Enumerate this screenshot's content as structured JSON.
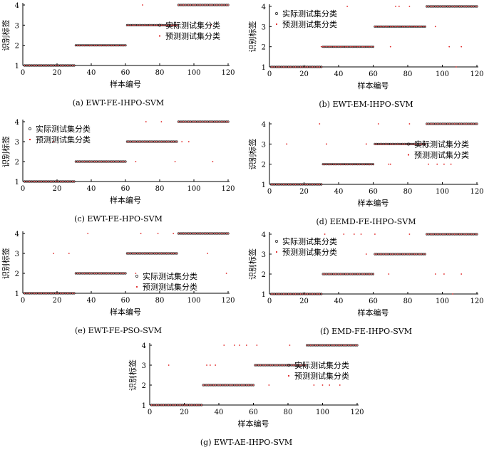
{
  "figure": {
    "colors": {
      "actual": "#1a1a1a",
      "predicted": "#e02020",
      "axis": "#000000",
      "background": "#ffffff"
    },
    "icons": {
      "actual_marker": "hollow-circle-icon",
      "predicted_marker": "red-dot-icon"
    }
  },
  "chart_data": [
    {
      "type": "scatter",
      "caption": "(a) EWT-FE-IHPO-SVM",
      "xlabel": "样本编号",
      "ylabel": "识别标签",
      "xlim": [
        0,
        120
      ],
      "ylim": [
        1,
        4
      ],
      "xticks": [
        0,
        20,
        40,
        60,
        80,
        100,
        120
      ],
      "yticks": [
        1,
        2,
        3,
        4
      ],
      "grid": false,
      "legend_position": "center-right",
      "series": [
        {
          "name": "实际测试集分类",
          "marker": "hollow-circle",
          "color": "#1a1a1a",
          "segments": [
            {
              "y": 1,
              "x": [
                1,
                30
              ]
            },
            {
              "y": 2,
              "x": [
                31,
                60
              ]
            },
            {
              "y": 3,
              "x": [
                61,
                90
              ]
            },
            {
              "y": 4,
              "x": [
                91,
                120
              ]
            }
          ]
        },
        {
          "name": "预测测试集分类",
          "marker": "dot",
          "color": "#e02020",
          "segments": [
            {
              "y": 1,
              "x": [
                1,
                30
              ]
            },
            {
              "y": 2,
              "x": [
                31,
                60
              ]
            },
            {
              "y": 3,
              "x": [
                61,
                90
              ]
            },
            {
              "y": 4,
              "x": [
                91,
                120
              ]
            }
          ],
          "outliers": [
            [
              70,
              4
            ],
            [
              110,
              3
            ]
          ]
        }
      ]
    },
    {
      "type": "scatter",
      "caption": "(b) EWT-EM-IHPO-SVM",
      "xlabel": "样本编号",
      "ylabel": "识别标签",
      "xlim": [
        0,
        120
      ],
      "ylim": [
        1,
        4
      ],
      "xticks": [
        0,
        20,
        40,
        60,
        80,
        100,
        120
      ],
      "yticks": [
        1,
        2,
        3,
        4
      ],
      "grid": false,
      "legend_position": "top-left",
      "series": [
        {
          "name": "实际测试集分类",
          "marker": "hollow-circle",
          "color": "#1a1a1a",
          "segments": [
            {
              "y": 1,
              "x": [
                1,
                30
              ]
            },
            {
              "y": 2,
              "x": [
                31,
                60
              ]
            },
            {
              "y": 3,
              "x": [
                61,
                90
              ]
            },
            {
              "y": 4,
              "x": [
                91,
                120
              ]
            }
          ]
        },
        {
          "name": "预测测试集分类",
          "marker": "dot",
          "color": "#e02020",
          "segments": [
            {
              "y": 1,
              "x": [
                1,
                30
              ]
            },
            {
              "y": 2,
              "x": [
                31,
                60
              ]
            },
            {
              "y": 3,
              "x": [
                61,
                90
              ]
            },
            {
              "y": 4,
              "x": [
                91,
                120
              ]
            }
          ],
          "outliers": [
            [
              30,
              2
            ],
            [
              45,
              4
            ],
            [
              73,
              4
            ],
            [
              75,
              4
            ],
            [
              81,
              4
            ],
            [
              70,
              2
            ],
            [
              96,
              3
            ],
            [
              104,
              2
            ],
            [
              108,
              1
            ],
            [
              111,
              2
            ]
          ]
        }
      ]
    },
    {
      "type": "scatter",
      "caption": "(c) EWT-FE-HPO-SVM",
      "xlabel": "样本编号",
      "ylabel": "识别标签",
      "xlim": [
        0,
        120
      ],
      "ylim": [
        1,
        4
      ],
      "xticks": [
        0,
        20,
        40,
        60,
        80,
        100,
        120
      ],
      "yticks": [
        1,
        2,
        3,
        4
      ],
      "grid": false,
      "legend_position": "top-left",
      "series": [
        {
          "name": "实际测试集分类",
          "marker": "hollow-circle",
          "color": "#1a1a1a",
          "segments": [
            {
              "y": 1,
              "x": [
                1,
                30
              ]
            },
            {
              "y": 2,
              "x": [
                31,
                60
              ]
            },
            {
              "y": 3,
              "x": [
                61,
                90
              ]
            },
            {
              "y": 4,
              "x": [
                91,
                120
              ]
            }
          ]
        },
        {
          "name": "预测测试集分类",
          "marker": "dot",
          "color": "#e02020",
          "segments": [
            {
              "y": 1,
              "x": [
                1,
                30
              ]
            },
            {
              "y": 2,
              "x": [
                31,
                60
              ]
            },
            {
              "y": 3,
              "x": [
                61,
                90
              ]
            },
            {
              "y": 4,
              "x": [
                91,
                120
              ]
            }
          ],
          "outliers": [
            [
              18,
              3
            ],
            [
              72,
              4
            ],
            [
              81,
              4
            ],
            [
              66,
              2
            ],
            [
              89,
              2
            ],
            [
              93,
              3
            ],
            [
              97,
              3
            ],
            [
              111,
              2
            ]
          ]
        }
      ]
    },
    {
      "type": "scatter",
      "caption": "(d) EEMD-FE-IHPO-SVM",
      "xlabel": "样本编号",
      "ylabel": "识别标签",
      "xlim": [
        0,
        120
      ],
      "ylim": [
        1,
        4
      ],
      "xticks": [
        0,
        20,
        40,
        60,
        80,
        100,
        120
      ],
      "yticks": [
        1,
        2,
        3,
        4
      ],
      "grid": false,
      "legend_position": "center-right",
      "series": [
        {
          "name": "实际测试集分类",
          "marker": "hollow-circle",
          "color": "#1a1a1a",
          "segments": [
            {
              "y": 1,
              "x": [
                1,
                30
              ]
            },
            {
              "y": 2,
              "x": [
                31,
                60
              ]
            },
            {
              "y": 3,
              "x": [
                61,
                90
              ]
            },
            {
              "y": 4,
              "x": [
                91,
                120
              ]
            }
          ]
        },
        {
          "name": "预测测试集分类",
          "marker": "dot",
          "color": "#e02020",
          "segments": [
            {
              "y": 1,
              "x": [
                1,
                30
              ]
            },
            {
              "y": 2,
              "x": [
                31,
                60
              ]
            },
            {
              "y": 3,
              "x": [
                61,
                90
              ]
            },
            {
              "y": 4,
              "x": [
                91,
                120
              ]
            }
          ],
          "outliers": [
            [
              10,
              3
            ],
            [
              29,
              4
            ],
            [
              33,
              3
            ],
            [
              56,
              3
            ],
            [
              63,
              4
            ],
            [
              69,
              2
            ],
            [
              70,
              2
            ],
            [
              81,
              4
            ],
            [
              92,
              2
            ],
            [
              97,
              2
            ],
            [
              101,
              2
            ],
            [
              105,
              2
            ]
          ]
        }
      ]
    },
    {
      "type": "scatter",
      "caption": "(e) EWT-FE-PSO-SVM",
      "xlabel": "样本编号",
      "ylabel": "识别标签",
      "xlim": [
        0,
        120
      ],
      "ylim": [
        1,
        4
      ],
      "xticks": [
        0,
        20,
        40,
        60,
        80,
        100,
        120
      ],
      "yticks": [
        1,
        2,
        3,
        4
      ],
      "grid": false,
      "legend_position": "bottom-right",
      "series": [
        {
          "name": "实际测试集分类",
          "marker": "hollow-circle",
          "color": "#1a1a1a",
          "segments": [
            {
              "y": 1,
              "x": [
                1,
                30
              ]
            },
            {
              "y": 2,
              "x": [
                31,
                60
              ]
            },
            {
              "y": 3,
              "x": [
                61,
                90
              ]
            },
            {
              "y": 4,
              "x": [
                91,
                120
              ]
            }
          ]
        },
        {
          "name": "预测测试集分类",
          "marker": "dot",
          "color": "#e02020",
          "segments": [
            {
              "y": 1,
              "x": [
                1,
                30
              ]
            },
            {
              "y": 2,
              "x": [
                31,
                60
              ]
            },
            {
              "y": 3,
              "x": [
                61,
                90
              ]
            },
            {
              "y": 4,
              "x": [
                91,
                120
              ]
            }
          ],
          "outliers": [
            [
              18,
              3
            ],
            [
              27,
              3
            ],
            [
              38,
              4
            ],
            [
              69,
              4
            ],
            [
              79,
              4
            ],
            [
              88,
              4
            ],
            [
              66,
              2
            ],
            [
              108,
              3
            ],
            [
              119,
              2
            ]
          ]
        }
      ]
    },
    {
      "type": "scatter",
      "caption": "(f) EMD-FE-IHPO-SVM",
      "xlabel": "样本编号",
      "ylabel": "识别标签",
      "xlim": [
        0,
        120
      ],
      "ylim": [
        1,
        4
      ],
      "xticks": [
        0,
        20,
        40,
        60,
        80,
        100,
        120
      ],
      "yticks": [
        1,
        2,
        3,
        4
      ],
      "grid": false,
      "legend_position": "top-left",
      "series": [
        {
          "name": "实际测试集分类",
          "marker": "hollow-circle",
          "color": "#1a1a1a",
          "segments": [
            {
              "y": 1,
              "x": [
                1,
                30
              ]
            },
            {
              "y": 2,
              "x": [
                31,
                60
              ]
            },
            {
              "y": 3,
              "x": [
                61,
                90
              ]
            },
            {
              "y": 4,
              "x": [
                91,
                120
              ]
            }
          ]
        },
        {
          "name": "预测测试集分类",
          "marker": "dot",
          "color": "#e02020",
          "segments": [
            {
              "y": 1,
              "x": [
                1,
                30
              ]
            },
            {
              "y": 2,
              "x": [
                31,
                60
              ]
            },
            {
              "y": 3,
              "x": [
                61,
                90
              ]
            },
            {
              "y": 4,
              "x": [
                91,
                120
              ]
            }
          ],
          "outliers": [
            [
              32,
              4
            ],
            [
              43,
              4
            ],
            [
              49,
              4
            ],
            [
              53,
              4
            ],
            [
              56,
              3
            ],
            [
              61,
              4
            ],
            [
              69,
              2
            ],
            [
              81,
              4
            ],
            [
              96,
              2
            ],
            [
              101,
              2
            ],
            [
              106,
              1
            ],
            [
              111,
              2
            ]
          ]
        }
      ]
    },
    {
      "type": "scatter",
      "caption": "(g) EWT-AE-IHPO-SVM",
      "xlabel": "样本编号",
      "ylabel": "识别标签",
      "xlim": [
        0,
        120
      ],
      "ylim": [
        1,
        4
      ],
      "xticks": [
        0,
        20,
        40,
        60,
        80,
        100,
        120
      ],
      "yticks": [
        1,
        2,
        3,
        4
      ],
      "grid": false,
      "legend_position": "center-right",
      "series": [
        {
          "name": "实际测试集分类",
          "marker": "hollow-circle",
          "color": "#1a1a1a",
          "segments": [
            {
              "y": 1,
              "x": [
                1,
                30
              ]
            },
            {
              "y": 2,
              "x": [
                31,
                60
              ]
            },
            {
              "y": 3,
              "x": [
                61,
                90
              ]
            },
            {
              "y": 4,
              "x": [
                91,
                120
              ]
            }
          ]
        },
        {
          "name": "预测测试集分类",
          "marker": "dot",
          "color": "#e02020",
          "segments": [
            {
              "y": 1,
              "x": [
                1,
                30
              ]
            },
            {
              "y": 2,
              "x": [
                31,
                60
              ]
            },
            {
              "y": 3,
              "x": [
                61,
                90
              ]
            },
            {
              "y": 4,
              "x": [
                91,
                120
              ]
            }
          ],
          "outliers": [
            [
              11,
              3
            ],
            [
              33,
              3
            ],
            [
              35,
              3
            ],
            [
              38,
              3
            ],
            [
              43,
              4
            ],
            [
              49,
              4
            ],
            [
              52,
              4
            ],
            [
              56,
              4
            ],
            [
              62,
              4
            ],
            [
              69,
              2
            ],
            [
              81,
              4
            ],
            [
              95,
              2
            ],
            [
              100,
              2
            ],
            [
              104,
              2
            ],
            [
              110,
              2
            ]
          ]
        }
      ]
    }
  ]
}
